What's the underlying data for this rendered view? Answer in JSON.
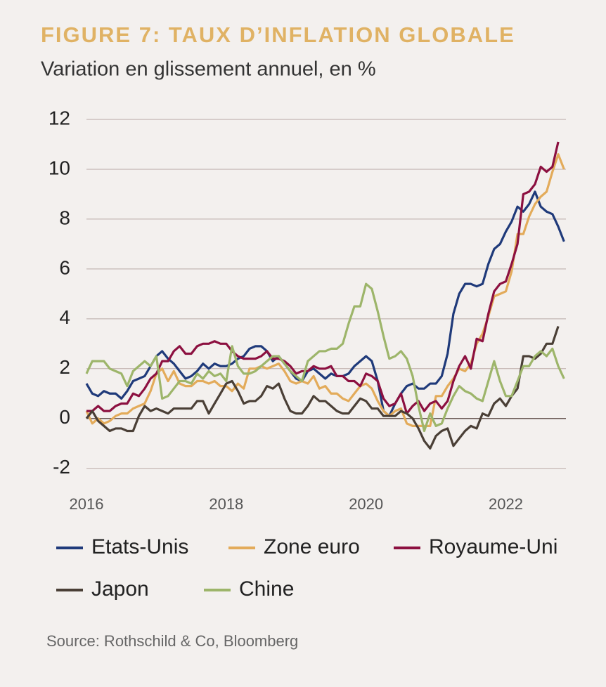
{
  "chart_data": {
    "type": "line",
    "title": "FIGURE 7: TAUX D’INFLATION GLOBALE",
    "subtitle": "Variation en glissement annuel, en %",
    "source": "Source: Rothschild & Co, Bloomberg",
    "x": [
      2016,
      2016.083,
      2016.167,
      2016.25,
      2016.333,
      2016.417,
      2016.5,
      2016.583,
      2016.667,
      2016.75,
      2016.833,
      2016.917,
      2017,
      2017.083,
      2017.167,
      2017.25,
      2017.333,
      2017.417,
      2017.5,
      2017.583,
      2017.667,
      2017.75,
      2017.833,
      2017.917,
      2018,
      2018.083,
      2018.167,
      2018.25,
      2018.333,
      2018.417,
      2018.5,
      2018.583,
      2018.667,
      2018.75,
      2018.833,
      2018.917,
      2019,
      2019.083,
      2019.167,
      2019.25,
      2019.333,
      2019.417,
      2019.5,
      2019.583,
      2019.667,
      2019.75,
      2019.833,
      2019.917,
      2020,
      2020.083,
      2020.167,
      2020.25,
      2020.333,
      2020.417,
      2020.5,
      2020.583,
      2020.667,
      2020.75,
      2020.833,
      2020.917,
      2021,
      2021.083,
      2021.167,
      2021.25,
      2021.333,
      2021.417,
      2021.5,
      2021.583,
      2021.667,
      2021.75,
      2021.833,
      2021.917,
      2022,
      2022.083,
      2022.167,
      2022.25,
      2022.333,
      2022.417,
      2022.5,
      2022.583,
      2022.667,
      2022.75,
      2022.833
    ],
    "xlim": [
      2016,
      2022.86
    ],
    "xticks": [
      2016,
      2018,
      2020,
      2022
    ],
    "ylim": [
      -2.6,
      12
    ],
    "yticks": [
      -2,
      0,
      2,
      4,
      6,
      8,
      10,
      12
    ],
    "grid": true,
    "series": [
      {
        "name": "Etats-Unis",
        "color": "#1f3a7a",
        "values": [
          1.4,
          1.0,
          0.9,
          1.1,
          1.0,
          1.0,
          0.8,
          1.1,
          1.5,
          1.6,
          1.7,
          2.1,
          2.5,
          2.7,
          2.4,
          2.2,
          1.9,
          1.6,
          1.7,
          1.9,
          2.2,
          2.0,
          2.2,
          2.1,
          2.1,
          2.2,
          2.4,
          2.5,
          2.8,
          2.9,
          2.9,
          2.7,
          2.3,
          2.5,
          2.2,
          1.9,
          1.6,
          1.5,
          1.9,
          2.0,
          1.8,
          1.6,
          1.8,
          1.7,
          1.7,
          1.8,
          2.1,
          2.3,
          2.5,
          2.3,
          1.5,
          0.3,
          0.1,
          0.6,
          1.0,
          1.3,
          1.4,
          1.2,
          1.2,
          1.4,
          1.4,
          1.7,
          2.6,
          4.2,
          5.0,
          5.4,
          5.4,
          5.3,
          5.4,
          6.2,
          6.8,
          7.0,
          7.5,
          7.9,
          8.5,
          8.3,
          8.6,
          9.1,
          8.5,
          8.3,
          8.2,
          7.7,
          7.1
        ]
      },
      {
        "name": "Zone euro",
        "color": "#e3ab5a",
        "values": [
          0.3,
          -0.2,
          0.0,
          -0.2,
          -0.1,
          0.1,
          0.2,
          0.2,
          0.4,
          0.5,
          0.6,
          1.1,
          1.8,
          2.0,
          1.5,
          1.9,
          1.4,
          1.3,
          1.3,
          1.5,
          1.5,
          1.4,
          1.5,
          1.3,
          1.3,
          1.1,
          1.4,
          1.2,
          2.0,
          2.0,
          2.1,
          2.0,
          2.1,
          2.2,
          1.9,
          1.5,
          1.4,
          1.5,
          1.4,
          1.7,
          1.2,
          1.3,
          1.0,
          1.0,
          0.8,
          0.7,
          1.0,
          1.3,
          1.4,
          1.2,
          0.7,
          0.3,
          0.1,
          0.3,
          0.4,
          -0.2,
          -0.3,
          -0.3,
          -0.3,
          -0.3,
          0.9,
          0.9,
          1.3,
          1.6,
          2.0,
          1.9,
          2.2,
          3.0,
          3.4,
          4.1,
          4.9,
          5.0,
          5.1,
          5.9,
          7.4,
          7.4,
          8.1,
          8.6,
          8.9,
          9.1,
          9.9,
          10.6,
          10.0
        ]
      },
      {
        "name": "Royaume-Uni",
        "color": "#8c1040",
        "values": [
          0.3,
          0.3,
          0.5,
          0.3,
          0.3,
          0.5,
          0.6,
          0.6,
          1.0,
          0.9,
          1.2,
          1.6,
          1.8,
          2.3,
          2.3,
          2.7,
          2.9,
          2.6,
          2.6,
          2.9,
          3.0,
          3.0,
          3.1,
          3.0,
          3.0,
          2.7,
          2.5,
          2.4,
          2.4,
          2.4,
          2.5,
          2.7,
          2.4,
          2.4,
          2.3,
          2.1,
          1.8,
          1.9,
          1.9,
          2.1,
          2.0,
          2.0,
          2.1,
          1.7,
          1.7,
          1.5,
          1.5,
          1.3,
          1.8,
          1.7,
          1.5,
          0.8,
          0.5,
          0.6,
          1.0,
          0.2,
          0.5,
          0.7,
          0.3,
          0.6,
          0.7,
          0.4,
          0.7,
          1.5,
          2.1,
          2.5,
          2.0,
          3.2,
          3.1,
          4.2,
          5.1,
          5.4,
          5.5,
          6.2,
          7.0,
          9.0,
          9.1,
          9.4,
          10.1,
          9.9,
          10.1,
          11.1,
          null
        ]
      },
      {
        "name": "Japon",
        "color": "#4a3f36",
        "values": [
          0.0,
          0.3,
          -0.1,
          -0.3,
          -0.5,
          -0.4,
          -0.4,
          -0.5,
          -0.5,
          0.1,
          0.5,
          0.3,
          0.4,
          0.3,
          0.2,
          0.4,
          0.4,
          0.4,
          0.4,
          0.7,
          0.7,
          0.2,
          0.6,
          1.0,
          1.4,
          1.5,
          1.1,
          0.6,
          0.7,
          0.7,
          0.9,
          1.3,
          1.2,
          1.4,
          0.8,
          0.3,
          0.2,
          0.2,
          0.5,
          0.9,
          0.7,
          0.7,
          0.5,
          0.3,
          0.2,
          0.2,
          0.5,
          0.8,
          0.7,
          0.4,
          0.4,
          0.1,
          0.1,
          0.1,
          0.3,
          0.2,
          0.0,
          -0.4,
          -0.9,
          -1.2,
          -0.7,
          -0.5,
          -0.4,
          -1.1,
          -0.8,
          -0.5,
          -0.3,
          -0.4,
          0.2,
          0.1,
          0.6,
          0.8,
          0.5,
          0.9,
          1.2,
          2.5,
          2.5,
          2.4,
          2.6,
          3.0,
          3.0,
          3.7,
          null
        ]
      },
      {
        "name": "Chine",
        "color": "#9db56a",
        "values": [
          1.8,
          2.3,
          2.3,
          2.3,
          2.0,
          1.9,
          1.8,
          1.3,
          1.9,
          2.1,
          2.3,
          2.1,
          2.5,
          0.8,
          0.9,
          1.2,
          1.5,
          1.5,
          1.4,
          1.8,
          1.6,
          1.9,
          1.7,
          1.8,
          1.5,
          2.9,
          2.1,
          1.8,
          1.8,
          1.9,
          2.1,
          2.3,
          2.5,
          2.5,
          2.2,
          1.9,
          1.7,
          1.5,
          2.3,
          2.5,
          2.7,
          2.7,
          2.8,
          2.8,
          3.0,
          3.8,
          4.5,
          4.5,
          5.4,
          5.2,
          4.3,
          3.3,
          2.4,
          2.5,
          2.7,
          2.4,
          1.7,
          0.5,
          -0.5,
          0.2,
          -0.3,
          -0.2,
          0.4,
          0.9,
          1.3,
          1.1,
          1.0,
          0.8,
          0.7,
          1.5,
          2.3,
          1.5,
          0.9,
          0.9,
          1.5,
          2.1,
          2.1,
          2.5,
          2.7,
          2.5,
          2.8,
          2.1,
          1.6
        ]
      }
    ]
  }
}
